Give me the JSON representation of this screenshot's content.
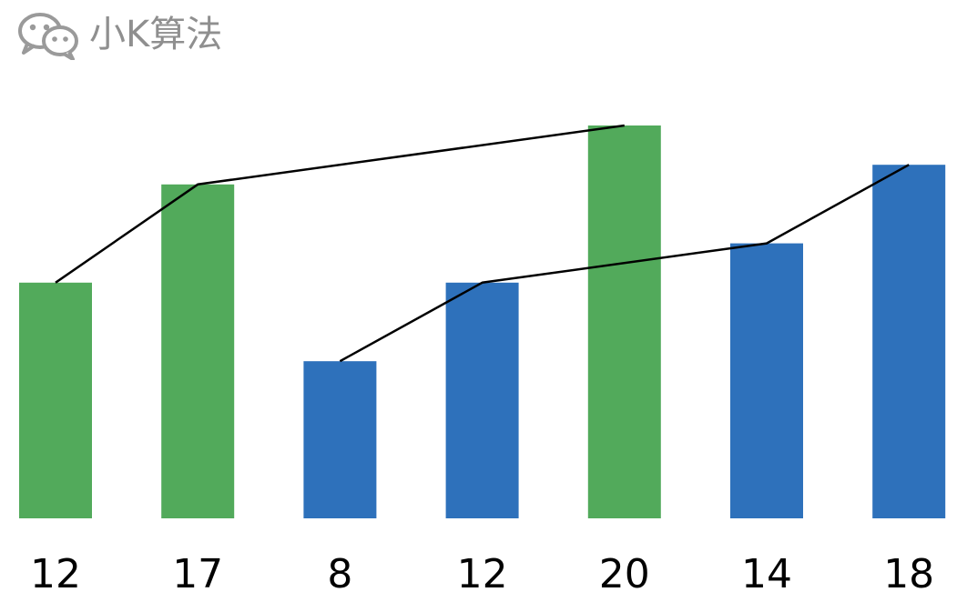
{
  "watermark": {
    "icon": "wechat-icon",
    "text": "小K算法"
  },
  "chart_data": {
    "type": "bar",
    "categories": [
      "12",
      "17",
      "8",
      "12",
      "20",
      "14",
      "18"
    ],
    "values": [
      12,
      17,
      8,
      12,
      20,
      14,
      18
    ],
    "bar_colors": [
      "#52AA5B",
      "#52AA5B",
      "#2E71BB",
      "#2E71BB",
      "#52AA5B",
      "#2E71BB",
      "#2E71BB"
    ],
    "ylim": [
      0,
      20
    ],
    "grid": false,
    "legend": "none",
    "connector_lines": [
      {
        "color": "#000000",
        "bar_indices": [
          0,
          1,
          4
        ]
      },
      {
        "color": "#000000",
        "bar_indices": [
          2,
          3,
          5,
          6
        ]
      }
    ]
  }
}
